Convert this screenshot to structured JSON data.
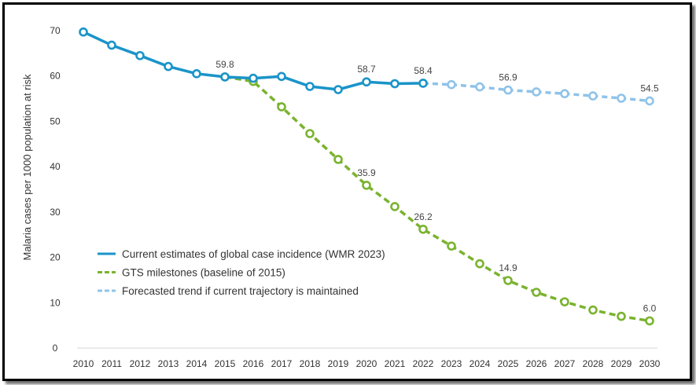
{
  "chart_data": {
    "type": "line",
    "ylabel": "Malaria cases per 1000 population at risk",
    "xlabel": "",
    "ylim": [
      0,
      70
    ],
    "yticks": [
      0,
      10,
      20,
      30,
      40,
      50,
      60,
      70
    ],
    "categories": [
      "2010",
      "2011",
      "2012",
      "2013",
      "2014",
      "2015",
      "2016",
      "2017",
      "2018",
      "2019",
      "2020",
      "2021",
      "2022",
      "2023",
      "2024",
      "2025",
      "2026",
      "2027",
      "2028",
      "2029",
      "2030"
    ],
    "legend_position": "bottom-left",
    "grid": false,
    "series": [
      {
        "name": "Current estimates of global case incidence (WMR 2023)",
        "color": "#1a94c9",
        "style": "solid",
        "x": [
          "2010",
          "2011",
          "2012",
          "2013",
          "2014",
          "2015",
          "2016",
          "2017",
          "2018",
          "2019",
          "2020",
          "2021",
          "2022"
        ],
        "values": [
          69.7,
          66.8,
          64.5,
          62.1,
          60.5,
          59.8,
          59.5,
          59.9,
          57.7,
          57.0,
          58.7,
          58.3,
          58.4
        ]
      },
      {
        "name": "GTS milestones (baseline of 2015)",
        "color": "#7ab32f",
        "style": "dashed",
        "x": [
          "2015",
          "2016",
          "2017",
          "2018",
          "2019",
          "2020",
          "2021",
          "2022",
          "2023",
          "2024",
          "2025",
          "2026",
          "2027",
          "2028",
          "2029",
          "2030"
        ],
        "values": [
          59.8,
          58.8,
          53.2,
          47.3,
          41.6,
          35.9,
          31.2,
          26.2,
          22.5,
          18.6,
          14.9,
          12.3,
          10.2,
          8.4,
          7.0,
          6.0
        ]
      },
      {
        "name": "Forecasted trend if current trajectory is maintained",
        "color": "#8fc3e9",
        "style": "dashed",
        "x": [
          "2022",
          "2023",
          "2024",
          "2025",
          "2026",
          "2027",
          "2028",
          "2029",
          "2030"
        ],
        "values": [
          58.4,
          58.1,
          57.6,
          56.9,
          56.5,
          56.1,
          55.6,
          55.1,
          54.5
        ]
      }
    ],
    "annotations": [
      {
        "x": "2015",
        "value": 59.8,
        "label": "59.8",
        "series": 0
      },
      {
        "x": "2020",
        "value": 58.7,
        "label": "58.7",
        "series": 0
      },
      {
        "x": "2022",
        "value": 58.4,
        "label": "58.4",
        "series": 0
      },
      {
        "x": "2025",
        "value": 56.9,
        "label": "56.9",
        "series": 2
      },
      {
        "x": "2030",
        "value": 54.5,
        "label": "54.5",
        "series": 2
      },
      {
        "x": "2020",
        "value": 35.9,
        "label": "35.9",
        "series": 1
      },
      {
        "x": "2022",
        "value": 26.2,
        "label": "26.2",
        "series": 1
      },
      {
        "x": "2025",
        "value": 14.9,
        "label": "14.9",
        "series": 1
      },
      {
        "x": "2030",
        "value": 6.0,
        "label": "6.0",
        "series": 1
      }
    ]
  }
}
